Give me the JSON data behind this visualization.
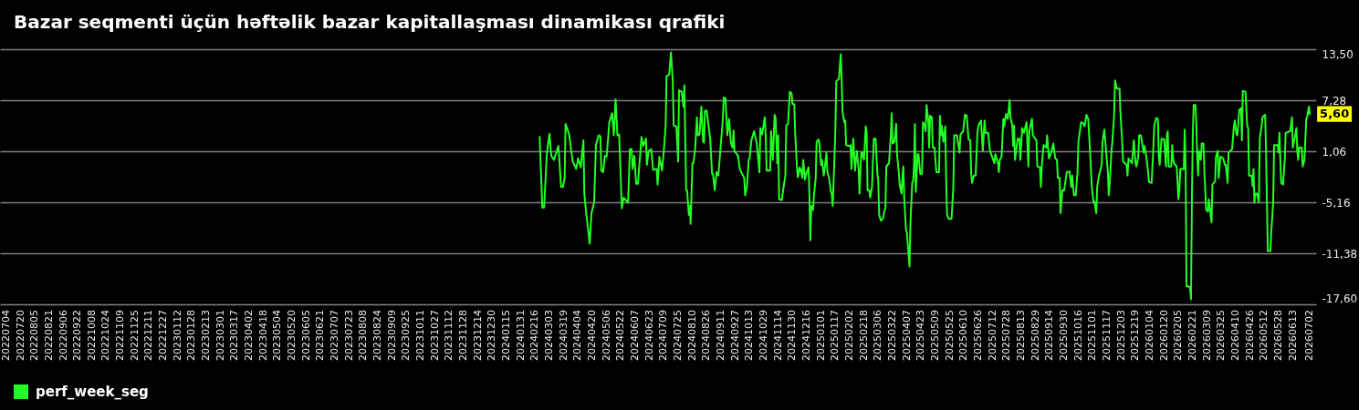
{
  "chart_data": {
    "type": "line",
    "title": "Bazar seqmenti üçün həftəlik bazar kapitallaşması dinamikası qrafiki",
    "x": [
      "2024-02-21",
      "2024-02-24",
      "2024-02-26",
      "2024-02-29",
      "2024-03-03",
      "2024-03-05",
      "2024-03-08",
      "2024-03-13",
      "2024-03-16",
      "2024-03-18",
      "2024-03-20",
      "2024-03-21",
      "2024-03-25",
      "2024-03-29",
      "2024-04-02",
      "2024-04-04",
      "2024-04-07",
      "2024-04-10",
      "2024-04-11",
      "2024-04-13",
      "2024-04-17",
      "2024-04-19",
      "2024-04-22",
      "2024-04-24",
      "2024-04-27",
      "2024-04-29",
      "2024-04-30",
      "2024-05-02",
      "2024-05-04",
      "2024-05-06",
      "2024-05-09",
      "2024-05-12",
      "2024-05-14",
      "2024-05-16",
      "2024-05-18",
      "2024-05-20",
      "2024-05-23",
      "2024-05-25",
      "2024-05-30",
      "2024-06-01",
      "2024-06-03",
      "2024-06-04",
      "2024-06-06",
      "2024-06-08",
      "2024-06-10",
      "2024-06-14",
      "2024-06-16",
      "2024-06-19",
      "2024-06-20",
      "2024-06-22",
      "2024-06-25",
      "2024-06-27",
      "2024-07-01",
      "2024-07-02",
      "2024-07-04",
      "2024-07-07",
      "2024-07-09",
      "2024-07-11",
      "2024-07-12",
      "2024-07-15",
      "2024-07-17",
      "2024-07-19",
      "2024-07-20",
      "2024-07-23",
      "2024-07-25",
      "2024-07-26",
      "2024-07-29",
      "2024-07-31",
      "2024-08-01",
      "2024-08-03",
      "2024-08-04",
      "2024-08-06",
      "2024-08-07",
      "2024-08-08",
      "2024-08-10",
      "2024-08-11",
      "2024-08-13",
      "2024-08-15",
      "2024-08-16",
      "2024-08-18",
      "2024-08-20",
      "2024-08-22",
      "2024-08-23",
      "2024-08-24",
      "2024-08-26",
      "2024-08-28",
      "2024-08-30",
      "2024-09-01",
      "2024-09-02",
      "2024-09-04",
      "2024-09-06",
      "2024-09-08",
      "2024-09-11",
      "2024-09-13",
      "2024-09-14",
      "2024-09-16",
      "2024-09-18",
      "2024-09-20",
      "2024-09-22",
      "2024-09-24",
      "2024-09-25",
      "2024-09-26",
      "2024-09-30",
      "2024-10-02",
      "2024-10-07",
      "2024-10-08",
      "2024-10-10",
      "2024-10-12",
      "2024-10-13",
      "2024-10-15",
      "2024-10-18",
      "2024-10-21",
      "2024-10-24",
      "2024-10-25",
      "2024-10-27",
      "2024-10-30",
      "2024-10-31",
      "2024-11-01",
      "2024-11-05",
      "2024-11-06",
      "2024-11-08",
      "2024-11-10",
      "2024-11-11",
      "2024-11-13",
      "2024-11-14",
      "2024-11-15",
      "2024-11-18",
      "2024-11-20",
      "2024-11-22",
      "2024-11-23",
      "2024-11-25",
      "2024-11-27",
      "2024-11-29",
      "2024-11-30",
      "2024-12-02",
      "2024-12-03",
      "2024-12-05",
      "2024-12-06",
      "2024-12-08",
      "2024-12-09",
      "2024-12-11",
      "2024-12-12",
      "2024-12-14",
      "2024-12-16",
      "2024-12-18",
      "2024-12-19",
      "2024-12-20",
      "2024-12-21",
      "2024-12-23",
      "2024-12-24",
      "2024-12-26",
      "2024-12-27",
      "2024-12-29",
      "2024-12-30",
      "2025-01-01",
      "2025-01-02",
      "2025-01-04",
      "2025-01-05",
      "2025-01-07",
      "2025-01-08",
      "2025-01-10",
      "2025-01-12",
      "2025-01-13",
      "2025-01-14",
      "2025-01-16",
      "2025-01-17",
      "2025-01-18",
      "2025-01-21",
      "2025-01-23",
      "2025-01-24",
      "2025-01-25",
      "2025-01-27",
      "2025-01-28",
      "2025-01-29",
      "2025-02-01",
      "2025-02-03",
      "2025-02-04",
      "2025-02-06",
      "2025-02-08",
      "2025-02-10",
      "2025-02-12",
      "2025-02-13",
      "2025-02-15",
      "2025-02-16",
      "2025-02-18",
      "2025-02-20",
      "2025-02-21",
      "2025-02-22",
      "2025-02-24",
      "2025-02-25",
      "2025-02-27",
      "2025-03-01",
      "2025-03-03",
      "2025-03-05",
      "2025-03-06",
      "2025-03-07",
      "2025-03-09",
      "2025-03-11",
      "2025-03-13",
      "2025-03-14",
      "2025-03-15",
      "2025-03-18",
      "2025-03-20",
      "2025-03-21",
      "2025-03-22",
      "2025-03-24",
      "2025-03-26",
      "2025-03-27",
      "2025-03-29",
      "2025-03-30",
      "2025-04-01",
      "2025-04-02",
      "2025-04-03",
      "2025-04-04",
      "2025-04-06",
      "2025-04-07",
      "2025-04-10",
      "2025-04-11",
      "2025-04-13",
      "2025-04-14",
      "2025-04-15",
      "2025-04-16",
      "2025-04-17",
      "2025-04-19",
      "2025-04-20",
      "2025-04-22",
      "2025-04-24",
      "2025-04-25",
      "2025-04-27",
      "2025-04-28",
      "2025-04-29",
      "2025-05-01",
      "2025-05-02",
      "2025-05-03",
      "2025-05-05",
      "2025-05-06",
      "2025-05-08",
      "2025-05-10",
      "2025-05-13",
      "2025-05-14",
      "2025-05-15",
      "2025-05-16",
      "2025-05-18",
      "2025-05-20",
      "2025-05-21",
      "2025-05-22",
      "2025-05-24",
      "2025-05-27",
      "2025-05-29",
      "2025-05-30",
      "2025-06-02",
      "2025-06-05",
      "2025-06-06",
      "2025-06-09",
      "2025-06-11",
      "2025-06-13",
      "2025-06-15",
      "2025-06-17",
      "2025-06-18",
      "2025-06-19",
      "2025-06-21",
      "2025-06-23",
      "2025-06-25",
      "2025-06-26",
      "2025-06-29",
      "2025-07-01",
      "2025-07-03",
      "2025-07-04",
      "2025-07-07",
      "2025-07-09",
      "2025-07-14",
      "2025-07-15",
      "2025-07-18",
      "2025-07-19",
      "2025-07-20",
      "2025-07-22",
      "2025-07-24",
      "2025-07-25",
      "2025-07-27",
      "2025-07-29",
      "2025-07-31",
      "2025-08-01",
      "2025-08-03",
      "2025-08-04",
      "2025-08-05",
      "2025-08-06",
      "2025-08-09",
      "2025-08-11",
      "2025-08-12",
      "2025-08-14",
      "2025-08-16",
      "2025-08-19",
      "2025-08-21",
      "2025-08-22",
      "2025-08-25",
      "2025-08-26",
      "2025-08-30",
      "2025-08-31",
      "2025-09-03",
      "2025-09-04",
      "2025-09-05",
      "2025-09-07",
      "2025-09-10",
      "2025-09-11",
      "2025-09-13",
      "2025-09-15",
      "2025-09-18",
      "2025-09-20",
      "2025-09-22",
      "2025-09-23",
      "2025-09-25",
      "2025-09-26",
      "2025-09-28",
      "2025-09-30",
      "2025-10-03",
      "2025-10-06",
      "2025-10-08",
      "2025-10-09",
      "2025-10-11",
      "2025-10-13",
      "2025-10-15",
      "2025-10-16",
      "2025-10-19",
      "2025-10-21",
      "2025-10-23",
      "2025-10-25",
      "2025-10-27",
      "2025-10-29",
      "2025-10-31",
      "2025-11-02",
      "2025-11-03",
      "2025-11-05",
      "2025-11-06",
      "2025-11-08",
      "2025-11-11",
      "2025-11-12",
      "2025-11-14",
      "2025-11-16",
      "2025-11-18",
      "2025-11-19",
      "2025-11-20",
      "2025-11-22",
      "2025-11-23",
      "2025-11-25",
      "2025-11-26",
      "2025-11-28",
      "2025-12-01",
      "2025-12-02",
      "2025-12-04",
      "2025-12-05",
      "2025-12-09",
      "2025-12-10",
      "2025-12-11",
      "2025-12-15",
      "2025-12-17",
      "2025-12-19",
      "2025-12-20",
      "2025-12-22",
      "2025-12-23",
      "2025-12-25",
      "2025-12-28",
      "2025-12-29",
      "2025-12-31",
      "2026-01-02",
      "2026-01-03",
      "2026-01-06",
      "2026-01-08",
      "2026-01-09",
      "2026-01-11",
      "2026-01-13",
      "2026-01-14",
      "2026-01-15",
      "2026-01-17",
      "2026-01-20",
      "2026-01-22",
      "2026-01-23",
      "2026-01-24",
      "2026-01-25",
      "2026-01-28",
      "2026-01-29",
      "2026-01-30",
      "2026-01-31",
      "2026-02-03",
      "2026-02-05",
      "2026-02-06",
      "2026-02-07",
      "2026-02-11",
      "2026-02-12",
      "2026-02-13",
      "2026-02-14",
      "2026-02-16",
      "2026-02-18",
      "2026-02-19",
      "2026-02-20",
      "2026-02-21",
      "2026-02-22",
      "2026-02-24",
      "2026-02-25",
      "2026-02-26",
      "2026-02-27",
      "2026-02-28",
      "2026-03-02",
      "2026-03-03",
      "2026-03-05",
      "2026-03-06",
      "2026-03-07",
      "2026-03-08",
      "2026-03-10",
      "2026-03-11",
      "2026-03-13",
      "2026-03-14",
      "2026-03-15",
      "2026-03-18",
      "2026-03-19",
      "2026-03-21",
      "2026-03-22",
      "2026-03-24",
      "2026-03-27",
      "2026-03-29",
      "2026-03-30",
      "2026-04-01",
      "2026-04-02",
      "2026-04-06",
      "2026-04-08",
      "2026-04-09",
      "2026-04-11",
      "2026-04-12",
      "2026-04-14",
      "2026-04-16",
      "2026-04-17",
      "2026-04-18",
      "2026-04-21",
      "2026-04-23",
      "2026-04-24",
      "2026-04-25",
      "2026-04-28",
      "2026-04-29",
      "2026-04-30",
      "2026-05-01",
      "2026-05-02",
      "2026-05-04",
      "2026-05-06",
      "2026-05-07",
      "2026-05-09",
      "2026-05-10",
      "2026-05-13",
      "2026-05-14",
      "2026-05-16",
      "2026-05-19",
      "2026-05-20",
      "2026-05-22",
      "2026-05-23",
      "2026-05-27",
      "2026-05-28",
      "2026-05-29",
      "2026-05-30",
      "2026-05-31",
      "2026-06-02",
      "2026-06-04",
      "2026-06-05",
      "2026-06-10",
      "2026-06-11",
      "2026-06-12",
      "2026-06-13",
      "2026-06-15",
      "2026-06-17",
      "2026-06-18",
      "2026-06-19",
      "2026-06-20",
      "2026-06-23",
      "2026-06-24",
      "2026-06-26",
      "2026-06-28",
      "2026-06-29",
      "2026-07-01",
      "2026-07-02"
    ],
    "series": [
      {
        "name": "perf_week_seg",
        "color": "#22ff22",
        "values": [
          2.8,
          -5.8,
          -5.8,
          0.7,
          3.2,
          0.5,
          0.0,
          1.7,
          -3.3,
          -3.3,
          -2.2,
          4.4,
          3.1,
          -0.2,
          -1.1,
          0.2,
          -0.9,
          2.4,
          -4.1,
          -6.4,
          -10.2,
          -6.5,
          -5.1,
          1.8,
          3.0,
          2.9,
          -1.3,
          -1.5,
          0.5,
          0.4,
          4.6,
          5.7,
          3.0,
          7.4,
          3.0,
          3.1,
          -5.9,
          -4.6,
          -5.2,
          1.3,
          1.3,
          -1.1,
          0.5,
          -2.9,
          -2.9,
          2.8,
          1.7,
          2.6,
          -0.6,
          1.1,
          1.3,
          -1.2,
          -1.1,
          -3.0,
          0.4,
          -1.3,
          1.1,
          4.1,
          10.2,
          10.4,
          13.1,
          9.6,
          4.2,
          4.1,
          -0.2,
          8.5,
          8.3,
          6.5,
          9.1,
          -3.7,
          -3.7,
          -6.7,
          -5.6,
          -7.8,
          -0.4,
          -0.4,
          1.3,
          5.2,
          3.0,
          3.1,
          6.5,
          2.2,
          2.1,
          6.0,
          6.0,
          4.2,
          2.4,
          -1.7,
          -1.7,
          -3.7,
          -1.5,
          -1.9,
          2.2,
          4.8,
          7.6,
          7.5,
          3.0,
          5.0,
          2.1,
          1.5,
          3.6,
          1.1,
          0.5,
          -1.1,
          -2.2,
          -4.3,
          -3.2,
          0.0,
          0.2,
          2.4,
          3.5,
          2.0,
          -1.5,
          3.9,
          3.1,
          5.2,
          3.0,
          -1.3,
          -1.3,
          3.5,
          0.0,
          5.5,
          5.2,
          -0.4,
          3.0,
          -4.8,
          -4.9,
          -3.3,
          -1.9,
          4.2,
          4.4,
          8.3,
          8.1,
          6.8,
          6.8,
          3.3,
          -0.9,
          -2.1,
          -0.9,
          -1.1,
          -2.2,
          0.0,
          -2.4,
          -1.5,
          -0.9,
          -4.5,
          -9.8,
          -5.6,
          -6.1,
          -4.3,
          -2.2,
          2.2,
          2.5,
          2.1,
          -0.6,
          0.0,
          -1.9,
          -1.1,
          0.9,
          -1.5,
          -2.2,
          -3.9,
          -4.1,
          -5.6,
          0.4,
          3.7,
          9.6,
          9.9,
          12.9,
          9.8,
          5.9,
          4.6,
          4.8,
          1.8,
          1.7,
          1.8,
          -1.1,
          2.6,
          -1.3,
          1.1,
          -1.1,
          -4.1,
          0.9,
          0.9,
          0.0,
          4.1,
          3.3,
          -3.7,
          -3.7,
          -4.6,
          -3.3,
          2.6,
          2.6,
          -1.7,
          -2.6,
          -6.7,
          -7.4,
          -7.2,
          -6.2,
          -5.9,
          -0.8,
          -0.4,
          3.0,
          5.7,
          2.0,
          2.2,
          4.4,
          0.7,
          -1.5,
          -3.0,
          -4.1,
          -2.2,
          -0.8,
          -4.5,
          -8.5,
          -8.9,
          -13.0,
          -7.8,
          -2.8,
          -2.6,
          -0.8,
          4.4,
          -3.9,
          0.7,
          0.7,
          -1.7,
          -1.7,
          4.6,
          4.2,
          3.5,
          6.7,
          4.8,
          1.5,
          5.4,
          5.2,
          1.5,
          1.5,
          -1.5,
          -1.5,
          5.4,
          3.0,
          4.2,
          2.2,
          4.1,
          -2.4,
          -6.7,
          -7.2,
          -7.2,
          -3.3,
          3.0,
          3.0,
          0.9,
          3.1,
          3.5,
          5.5,
          5.4,
          2.5,
          2.4,
          -1.7,
          -2.8,
          -1.9,
          -1.9,
          3.3,
          4.2,
          4.8,
          1.1,
          4.8,
          3.3,
          3.3,
          1.1,
          -0.4,
          0.7,
          -0.4,
          -1.5,
          0.0,
          0.4,
          5.0,
          4.1,
          5.6,
          5.0,
          7.3,
          5.2,
          4.2,
          1.7,
          4.2,
          0.0,
          2.6,
          2.6,
          0.0,
          3.9,
          3.3,
          4.6,
          -0.8,
          3.5,
          5.0,
          3.0,
          2.4,
          -0.8,
          -0.9,
          -3.3,
          -0.8,
          1.8,
          1.5,
          3.0,
          0.2,
          0.7,
          2.0,
          0.2,
          0.0,
          -2.2,
          -2.2,
          -6.5,
          -3.7,
          -3.7,
          -1.5,
          -1.4,
          -3.3,
          -1.9,
          -4.3,
          -4.3,
          -1.5,
          2.2,
          4.6,
          4.5,
          4.1,
          5.5,
          5.0,
          1.1,
          -3.3,
          -5.2,
          -5.1,
          -6.5,
          -3.3,
          -1.9,
          -0.6,
          2.2,
          3.7,
          1.1,
          -1.5,
          -4.3,
          -3.0,
          1.1,
          2.2,
          5.5,
          9.7,
          8.7,
          8.7,
          5.9,
          2.2,
          -0.2,
          -0.6,
          -1.9,
          0.2,
          -0.4,
          2.4,
          -0.4,
          -0.8,
          0.4,
          3.0,
          3.0,
          0.9,
          1.7,
          0.4,
          -1.5,
          -2.7,
          -2.8,
          1.8,
          4.2,
          5.1,
          5.0,
          0.4,
          -0.6,
          2.6,
          2.5,
          -0.8,
          3.0,
          3.5,
          -0.8,
          -0.8,
          1.8,
          0.2,
          -0.4,
          -0.8,
          -4.8,
          -3.7,
          -1.1,
          -1.1,
          3.7,
          -0.8,
          -15.4,
          -15.4,
          -15.6,
          -17.0,
          -5.2,
          3.0,
          6.7,
          6.7,
          4.4,
          0.4,
          -1.9,
          1.1,
          0.0,
          2.0,
          2.0,
          -1.5,
          -3.7,
          -6.1,
          -6.3,
          -4.8,
          -6.7,
          -7.6,
          -3.0,
          -2.6,
          0.4,
          1.1,
          -2.2,
          0.4,
          0.2,
          -0.6,
          -0.6,
          -2.8,
          0.9,
          1.3,
          4.1,
          4.8,
          3.1,
          3.0,
          6.1,
          6.3,
          2.4,
          8.4,
          8.3,
          4.1,
          3.9,
          -1.9,
          -1.9,
          -3.2,
          -1.1,
          -5.2,
          -4.1,
          -4.1,
          -5.2,
          2.6,
          4.1,
          5.2,
          5.5,
          1.1,
          -11.1,
          -11.1,
          -8.5,
          -5.2,
          1.8,
          1.8,
          0.9,
          3.3,
          0.0,
          -2.8,
          -3.0,
          0.1,
          3.3,
          3.5,
          4.2,
          5.2,
          1.5,
          2.6,
          3.9,
          1.1,
          0.0,
          1.5,
          1.5,
          -0.8,
          0.0,
          5.0,
          5.2,
          6.5,
          5.6
        ]
      }
    ],
    "xlim": [
      "2022-06-27",
      "2026-07-09"
    ],
    "xticks": [
      {
        "value": "2022-07-04",
        "label": "20220704"
      },
      {
        "value": "2022-07-20",
        "label": "20220720"
      },
      {
        "value": "2022-08-05",
        "label": "20220805"
      },
      {
        "value": "2022-08-21",
        "label": "20220821"
      },
      {
        "value": "2022-09-06",
        "label": "20220906"
      },
      {
        "value": "2022-09-22",
        "label": "20220922"
      },
      {
        "value": "2022-10-08",
        "label": "20221008"
      },
      {
        "value": "2022-10-24",
        "label": "20221024"
      },
      {
        "value": "2022-11-09",
        "label": "20221109"
      },
      {
        "value": "2022-11-25",
        "label": "20221125"
      },
      {
        "value": "2022-12-11",
        "label": "20221211"
      },
      {
        "value": "2022-12-27",
        "label": "20221227"
      },
      {
        "value": "2023-01-12",
        "label": "20230112"
      },
      {
        "value": "2023-01-28",
        "label": "20230128"
      },
      {
        "value": "2023-02-13",
        "label": "20230213"
      },
      {
        "value": "2023-03-01",
        "label": "20230301"
      },
      {
        "value": "2023-03-17",
        "label": "20230317"
      },
      {
        "value": "2023-04-02",
        "label": "20230402"
      },
      {
        "value": "2023-04-18",
        "label": "20230418"
      },
      {
        "value": "2023-05-04",
        "label": "20230504"
      },
      {
        "value": "2023-05-20",
        "label": "20230520"
      },
      {
        "value": "2023-06-05",
        "label": "20230605"
      },
      {
        "value": "2023-06-21",
        "label": "20230621"
      },
      {
        "value": "2023-07-07",
        "label": "20230707"
      },
      {
        "value": "2023-07-23",
        "label": "20230723"
      },
      {
        "value": "2023-08-08",
        "label": "20230808"
      },
      {
        "value": "2023-08-24",
        "label": "20230824"
      },
      {
        "value": "2023-09-09",
        "label": "20230909"
      },
      {
        "value": "2023-09-25",
        "label": "20230925"
      },
      {
        "value": "2023-10-11",
        "label": "20231011"
      },
      {
        "value": "2023-10-27",
        "label": "20231027"
      },
      {
        "value": "2023-11-12",
        "label": "20231112"
      },
      {
        "value": "2023-11-28",
        "label": "20231128"
      },
      {
        "value": "2023-12-14",
        "label": "20231214"
      },
      {
        "value": "2023-12-30",
        "label": "20231230"
      },
      {
        "value": "2024-01-15",
        "label": "20240115"
      },
      {
        "value": "2024-01-31",
        "label": "20240131"
      },
      {
        "value": "2024-02-16",
        "label": "20240216"
      },
      {
        "value": "2024-03-03",
        "label": "20240303"
      },
      {
        "value": "2024-03-19",
        "label": "20240319"
      },
      {
        "value": "2024-04-04",
        "label": "20240404"
      },
      {
        "value": "2024-04-20",
        "label": "20240420"
      },
      {
        "value": "2024-05-06",
        "label": "20240506"
      },
      {
        "value": "2024-05-22",
        "label": "20240522"
      },
      {
        "value": "2024-06-07",
        "label": "20240607"
      },
      {
        "value": "2024-06-23",
        "label": "20240623"
      },
      {
        "value": "2024-07-09",
        "label": "20240709"
      },
      {
        "value": "2024-07-25",
        "label": "20240725"
      },
      {
        "value": "2024-08-10",
        "label": "20240810"
      },
      {
        "value": "2024-08-26",
        "label": "20240826"
      },
      {
        "value": "2024-09-11",
        "label": "20240911"
      },
      {
        "value": "2024-09-27",
        "label": "20240927"
      },
      {
        "value": "2024-10-13",
        "label": "20241013"
      },
      {
        "value": "2024-10-29",
        "label": "20241029"
      },
      {
        "value": "2024-11-14",
        "label": "20241114"
      },
      {
        "value": "2024-11-30",
        "label": "20241130"
      },
      {
        "value": "2024-12-16",
        "label": "20241216"
      },
      {
        "value": "2025-01-01",
        "label": "20250101"
      },
      {
        "value": "2025-01-17",
        "label": "20250117"
      },
      {
        "value": "2025-02-02",
        "label": "20250202"
      },
      {
        "value": "2025-02-18",
        "label": "20250218"
      },
      {
        "value": "2025-03-06",
        "label": "20250306"
      },
      {
        "value": "2025-03-22",
        "label": "20250322"
      },
      {
        "value": "2025-04-07",
        "label": "20250407"
      },
      {
        "value": "2025-04-23",
        "label": "20250423"
      },
      {
        "value": "2025-05-09",
        "label": "20250509"
      },
      {
        "value": "2025-05-25",
        "label": "20250525"
      },
      {
        "value": "2025-06-10",
        "label": "20250610"
      },
      {
        "value": "2025-06-26",
        "label": "20250626"
      },
      {
        "value": "2025-07-12",
        "label": "20250712"
      },
      {
        "value": "2025-07-28",
        "label": "20250728"
      },
      {
        "value": "2025-08-13",
        "label": "20250813"
      },
      {
        "value": "2025-08-29",
        "label": "20250829"
      },
      {
        "value": "2025-09-14",
        "label": "20250914"
      },
      {
        "value": "2025-09-30",
        "label": "20250930"
      },
      {
        "value": "2025-10-16",
        "label": "20251016"
      },
      {
        "value": "2025-11-01",
        "label": "20251101"
      },
      {
        "value": "2025-11-17",
        "label": "20251117"
      },
      {
        "value": "2025-12-03",
        "label": "20251203"
      },
      {
        "value": "2025-12-19",
        "label": "20251219"
      },
      {
        "value": "2026-01-04",
        "label": "20260104"
      },
      {
        "value": "2026-01-20",
        "label": "20260120"
      },
      {
        "value": "2026-02-05",
        "label": "20260205"
      },
      {
        "value": "2026-02-21",
        "label": "20260221"
      },
      {
        "value": "2026-03-09",
        "label": "20260309"
      },
      {
        "value": "2026-03-25",
        "label": "20260325"
      },
      {
        "value": "2026-04-10",
        "label": "20260410"
      },
      {
        "value": "2026-04-26",
        "label": "20260426"
      },
      {
        "value": "2026-05-12",
        "label": "20260512"
      },
      {
        "value": "2026-05-28",
        "label": "20260528"
      },
      {
        "value": "2026-06-13",
        "label": "20260613"
      },
      {
        "value": "2026-07-02",
        "label": "20260702"
      }
    ],
    "ylim": [
      -17.6,
      13.5
    ],
    "yticks": [
      {
        "value": -17.6,
        "label": "-17,60"
      },
      {
        "value": -11.38,
        "label": "-11,38"
      },
      {
        "value": -5.16,
        "label": "-5,16"
      },
      {
        "value": 1.06,
        "label": "1,06"
      },
      {
        "value": 7.28,
        "label": "7,28"
      },
      {
        "value": 13.5,
        "label": "13,50"
      }
    ],
    "grid": "y",
    "legend": "bottom",
    "line_style": "solid",
    "annotations": [
      {
        "text": "5,60",
        "x": "2026-07-02",
        "y": 5.6
      }
    ]
  }
}
